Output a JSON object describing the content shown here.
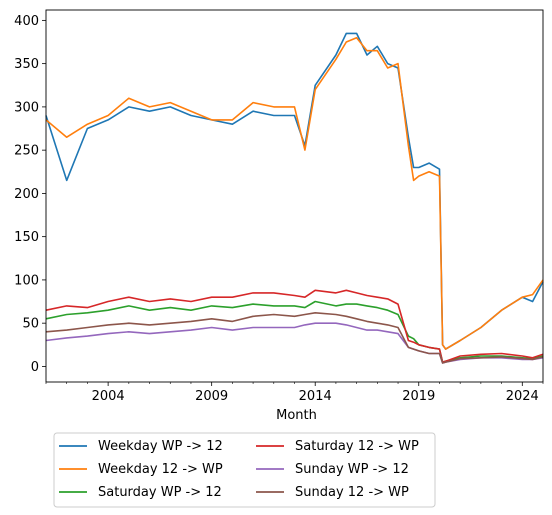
{
  "chart_data": {
    "type": "line",
    "xlabel": "Month",
    "ylabel": "",
    "x_tick_labels": [
      "2004",
      "2009",
      "2014",
      "2019",
      "2024"
    ],
    "y_ticks": [
      0,
      50,
      100,
      150,
      200,
      250,
      300,
      350,
      400
    ],
    "xlim": [
      2001.0,
      2025.0
    ],
    "ylim": [
      -18,
      412
    ],
    "grid": false,
    "legend": {
      "placement": "below",
      "columns": 2
    },
    "x": [
      2001.0,
      2002.0,
      2003.0,
      2004.0,
      2005.0,
      2006.0,
      2007.0,
      2008.0,
      2009.0,
      2010.0,
      2011.0,
      2012.0,
      2013.0,
      2013.5,
      2014.0,
      2015.0,
      2015.5,
      2016.0,
      2016.5,
      2017.0,
      2017.5,
      2018.0,
      2018.5,
      2018.75,
      2019.0,
      2019.5,
      2020.0,
      2020.15,
      2020.3,
      2021.0,
      2022.0,
      2023.0,
      2024.0,
      2024.5,
      2025.0
    ],
    "series": [
      {
        "name": "Weekday WP -> 12",
        "color": "#1f77b4",
        "values": [
          290,
          215,
          275,
          285,
          300,
          295,
          300,
          290,
          285,
          280,
          295,
          290,
          290,
          255,
          325,
          360,
          385,
          385,
          360,
          370,
          350,
          345,
          265,
          230,
          230,
          235,
          228,
          25,
          20,
          30,
          45,
          65,
          80,
          75,
          98
        ]
      },
      {
        "name": "Weekday 12 -> WP",
        "color": "#ff7f0e",
        "values": [
          285,
          265,
          280,
          290,
          310,
          300,
          305,
          295,
          285,
          285,
          305,
          300,
          300,
          250,
          320,
          355,
          375,
          380,
          365,
          365,
          345,
          350,
          255,
          215,
          220,
          225,
          220,
          25,
          20,
          30,
          45,
          65,
          80,
          83,
          100
        ]
      },
      {
        "name": "Saturday WP -> 12",
        "color": "#2ca02c",
        "values": [
          55,
          60,
          62,
          65,
          70,
          65,
          68,
          65,
          70,
          68,
          72,
          70,
          70,
          68,
          75,
          70,
          72,
          72,
          70,
          68,
          65,
          60,
          35,
          32,
          25,
          22,
          20,
          5,
          6,
          10,
          12,
          12,
          10,
          9,
          12
        ]
      },
      {
        "name": "Saturday 12 -> WP",
        "color": "#d62728",
        "values": [
          65,
          70,
          68,
          75,
          80,
          75,
          78,
          75,
          80,
          80,
          85,
          85,
          82,
          80,
          88,
          85,
          88,
          85,
          82,
          80,
          78,
          72,
          30,
          28,
          25,
          22,
          20,
          5,
          6,
          12,
          14,
          15,
          12,
          10,
          14
        ]
      },
      {
        "name": "Sunday WP -> 12",
        "color": "#9467bd",
        "values": [
          30,
          33,
          35,
          38,
          40,
          38,
          40,
          42,
          45,
          42,
          45,
          45,
          45,
          48,
          50,
          50,
          48,
          45,
          42,
          42,
          40,
          38,
          22,
          20,
          18,
          15,
          15,
          4,
          5,
          8,
          10,
          10,
          8,
          8,
          10
        ]
      },
      {
        "name": "Sunday 12 -> WP",
        "color": "#8c564b",
        "values": [
          40,
          42,
          45,
          48,
          50,
          48,
          50,
          52,
          55,
          52,
          58,
          60,
          58,
          60,
          62,
          60,
          58,
          55,
          52,
          50,
          48,
          45,
          22,
          20,
          18,
          15,
          15,
          4,
          5,
          9,
          10,
          11,
          9,
          8,
          11
        ]
      }
    ]
  }
}
